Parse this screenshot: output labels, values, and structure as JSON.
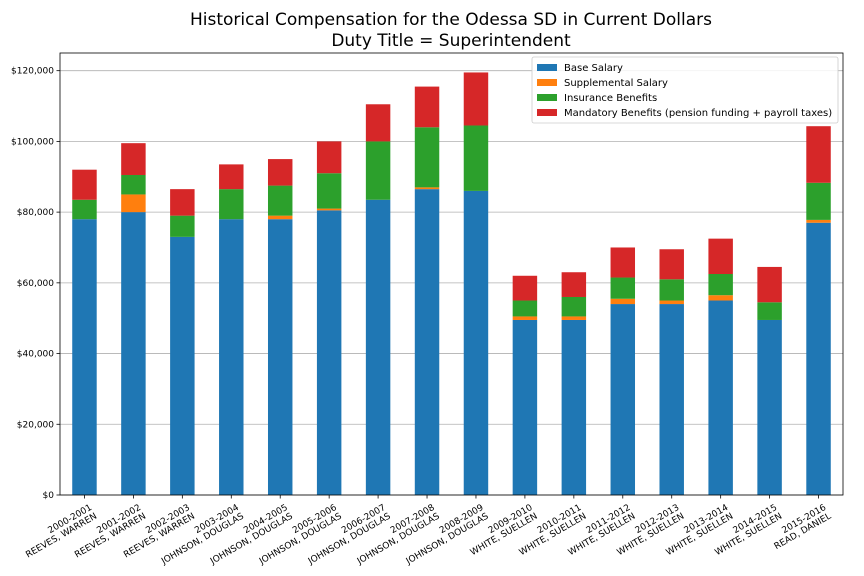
{
  "chart_data": {
    "type": "bar",
    "stacked": true,
    "title": "Historical Compensation for the Odessa SD in Current Dollars",
    "subtitle": "Duty Title = Superintendent",
    "xlabel": "",
    "ylabel": "",
    "ylim": [
      0,
      125000
    ],
    "yticks": [
      0,
      20000,
      40000,
      60000,
      80000,
      100000,
      120000
    ],
    "ytick_labels": [
      "$0",
      "$20,000",
      "$40,000",
      "$60,000",
      "$80,000",
      "$100,000",
      "$120,000"
    ],
    "grid": "horizontal",
    "legend_position": "top-right",
    "categories": [
      [
        "2000-2001",
        "REEVES, WARREN"
      ],
      [
        "2001-2002",
        "REEVES, WARREN"
      ],
      [
        "2002-2003",
        "REEVES, WARREN"
      ],
      [
        "2003-2004",
        "JOHNSON, DOUGLAS"
      ],
      [
        "2004-2005",
        "JOHNSON, DOUGLAS"
      ],
      [
        "2005-2006",
        "JOHNSON, DOUGLAS"
      ],
      [
        "2006-2007",
        "JOHNSON, DOUGLAS"
      ],
      [
        "2007-2008",
        "JOHNSON, DOUGLAS"
      ],
      [
        "2008-2009",
        "JOHNSON, DOUGLAS"
      ],
      [
        "2009-2010",
        "WHITE, SUELLEN"
      ],
      [
        "2010-2011",
        "WHITE, SUELLEN"
      ],
      [
        "2011-2012",
        "WHITE, SUELLEN"
      ],
      [
        "2012-2013",
        "WHITE, SUELLEN"
      ],
      [
        "2013-2014",
        "WHITE, SUELLEN"
      ],
      [
        "2014-2015",
        "WHITE, SUELLEN"
      ],
      [
        "2015-2016",
        "READ, DANIEL"
      ]
    ],
    "series": [
      {
        "name": "Base Salary",
        "color": "#1f77b4",
        "values": [
          78000,
          80000,
          73000,
          78000,
          78000,
          80500,
          83500,
          86500,
          86000,
          49500,
          49500,
          54000,
          54000,
          55000,
          49500,
          77000
        ]
      },
      {
        "name": "Supplemental Salary",
        "color": "#ff7f0e",
        "values": [
          0,
          5000,
          0,
          0,
          1000,
          500,
          0,
          500,
          0,
          1000,
          1000,
          1500,
          1000,
          1500,
          0,
          800
        ]
      },
      {
        "name": "Insurance Benefits",
        "color": "#2ca02c",
        "values": [
          5500,
          5500,
          6000,
          8500,
          8500,
          10000,
          16500,
          17000,
          18500,
          4500,
          5500,
          6000,
          6000,
          6000,
          5000,
          10500
        ]
      },
      {
        "name": "Mandatory Benefits (pension funding + payroll taxes)",
        "color": "#d62728",
        "values": [
          8500,
          9000,
          7500,
          7000,
          7500,
          9000,
          10500,
          11500,
          15000,
          7000,
          7000,
          8500,
          8500,
          10000,
          10000,
          16000
        ]
      }
    ]
  }
}
